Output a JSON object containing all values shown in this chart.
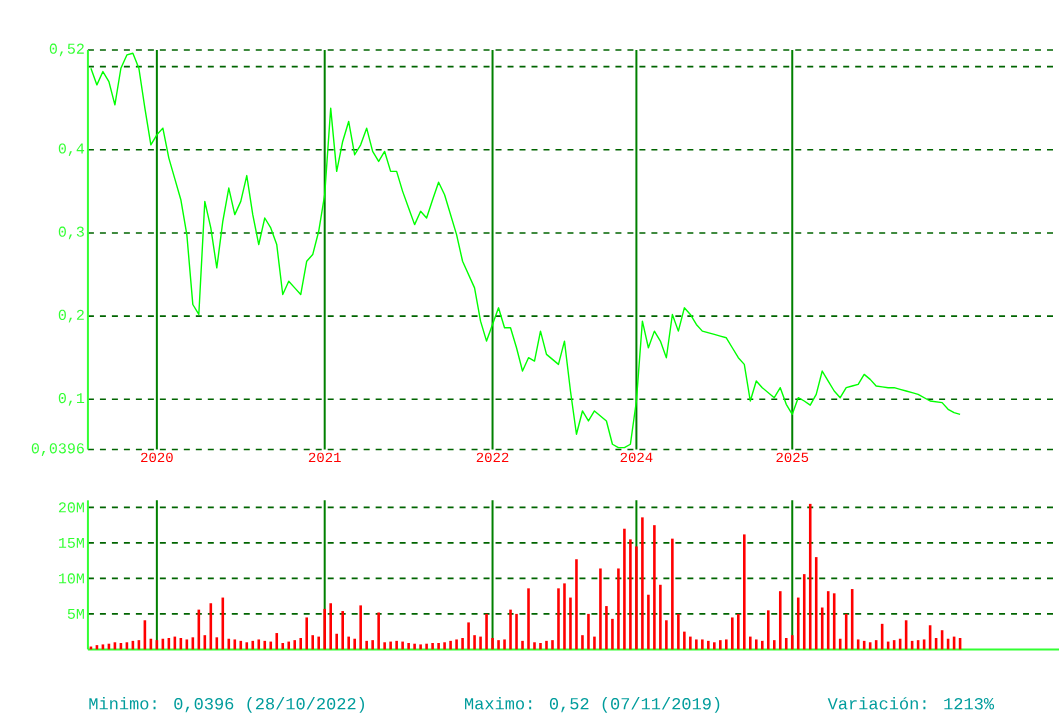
{
  "chart_data": [
    {
      "type": "line",
      "ylim": [
        0.0396,
        0.52
      ],
      "grid": true,
      "marker": "none",
      "line_style": "solid",
      "categories": [
        null,
        null,
        null,
        null,
        null,
        null,
        null,
        null,
        null,
        null,
        null,
        "2020",
        null,
        null,
        null,
        null,
        null,
        null,
        null,
        null,
        null,
        null,
        null,
        null,
        null,
        null,
        null,
        null,
        null,
        null,
        null,
        null,
        null,
        null,
        null,
        null,
        null,
        null,
        null,
        "2021",
        null,
        null,
        null,
        null,
        null,
        null,
        null,
        null,
        null,
        null,
        null,
        null,
        null,
        null,
        null,
        null,
        null,
        null,
        null,
        null,
        null,
        null,
        null,
        null,
        null,
        null,
        null,
        "2022",
        null,
        null,
        null,
        null,
        null,
        null,
        null,
        null,
        null,
        null,
        null,
        null,
        null,
        null,
        null,
        null,
        null,
        null,
        null,
        null,
        null,
        null,
        null,
        "2024",
        null,
        null,
        null,
        null,
        null,
        null,
        null,
        null,
        null,
        null,
        null,
        null,
        null,
        null,
        null,
        null,
        null,
        null,
        null,
        null,
        null,
        null,
        null,
        null,
        null,
        "2025",
        null,
        null,
        null,
        null,
        null,
        null,
        null,
        null,
        null,
        null,
        null,
        null,
        null,
        null,
        null,
        null,
        null,
        null,
        null,
        null,
        null,
        null,
        null,
        null,
        null,
        null,
        null,
        null,
        null,
        null,
        null,
        null,
        null,
        null,
        null,
        null,
        null,
        null,
        null,
        null,
        null,
        null,
        null,
        null
      ],
      "yticks": [
        {
          "value": 0.0396,
          "label": "0,0396"
        },
        {
          "value": 0.1,
          "label": "0,1"
        },
        {
          "value": 0.2,
          "label": "0,2"
        },
        {
          "value": 0.3,
          "label": "0,3"
        },
        {
          "value": 0.4,
          "label": "0,4"
        },
        {
          "value": 0.5,
          "label": null
        },
        {
          "value": 0.52,
          "label": "0,52"
        }
      ],
      "series": [
        {
          "color": "#00ff00",
          "values": [
            0.498,
            0.478,
            0.494,
            0.482,
            0.454,
            0.498,
            0.514,
            0.516,
            0.498,
            0.45,
            0.406,
            0.418,
            0.426,
            0.39,
            0.365,
            0.34,
            0.298,
            0.214,
            0.202,
            0.338,
            0.306,
            0.258,
            0.314,
            0.354,
            0.322,
            0.338,
            0.369,
            0.322,
            0.286,
            0.318,
            0.306,
            0.286,
            0.226,
            0.242,
            0.234,
            0.226,
            0.266,
            0.274,
            0.302,
            0.346,
            0.45,
            0.374,
            0.41,
            0.434,
            0.394,
            0.406,
            0.426,
            0.398,
            0.386,
            0.398,
            0.374,
            0.374,
            0.35,
            0.33,
            0.31,
            0.326,
            0.318,
            0.34,
            0.361,
            0.346,
            0.322,
            0.298,
            0.266,
            0.25,
            0.234,
            0.194,
            0.17,
            0.19,
            0.21,
            0.186,
            0.186,
            0.162,
            0.134,
            0.15,
            0.146,
            0.182,
            0.154,
            0.148,
            0.142,
            0.17,
            0.11,
            0.058,
            0.086,
            0.074,
            0.086,
            0.08,
            0.074,
            0.046,
            0.042,
            0.042,
            0.046,
            0.098,
            0.194,
            0.162,
            0.182,
            0.17,
            0.15,
            0.202,
            0.182,
            0.21,
            0.202,
            0.19,
            0.182,
            0.18,
            0.178,
            0.176,
            0.174,
            0.162,
            0.15,
            0.142,
            0.098,
            0.122,
            0.114,
            0.108,
            0.102,
            0.114,
            0.094,
            0.082,
            0.102,
            0.098,
            0.093,
            0.106,
            0.134,
            0.122,
            0.11,
            0.102,
            0.114,
            0.116,
            0.118,
            0.13,
            0.124,
            0.116,
            0.115,
            0.114,
            0.114,
            0.112,
            0.11,
            0.108,
            0.106,
            0.102,
            0.098,
            0.097,
            0.096,
            0.088,
            0.084,
            0.082,
            null,
            null,
            null,
            null,
            null,
            null,
            null,
            null,
            null,
            null,
            null,
            null,
            null,
            null,
            null,
            null
          ]
        }
      ]
    },
    {
      "type": "bar",
      "ylim": [
        0,
        21
      ],
      "grid": true,
      "tick_labels": "y",
      "categories": [
        null,
        null,
        null,
        null,
        null,
        null,
        null,
        null,
        null,
        null,
        null,
        "2020",
        null,
        null,
        null,
        null,
        null,
        null,
        null,
        null,
        null,
        null,
        null,
        null,
        null,
        null,
        null,
        null,
        null,
        null,
        null,
        null,
        null,
        null,
        null,
        null,
        null,
        null,
        null,
        "2021",
        null,
        null,
        null,
        null,
        null,
        null,
        null,
        null,
        null,
        null,
        null,
        null,
        null,
        null,
        null,
        null,
        null,
        null,
        null,
        null,
        null,
        null,
        null,
        null,
        null,
        null,
        null,
        "2022",
        null,
        null,
        null,
        null,
        null,
        null,
        null,
        null,
        null,
        null,
        null,
        null,
        null,
        null,
        null,
        null,
        null,
        null,
        null,
        null,
        null,
        null,
        null,
        "2024",
        null,
        null,
        null,
        null,
        null,
        null,
        null,
        null,
        null,
        null,
        null,
        null,
        null,
        null,
        null,
        null,
        null,
        null,
        null,
        null,
        null,
        null,
        null,
        null,
        null,
        "2025",
        null,
        null,
        null,
        null,
        null,
        null,
        null,
        null,
        null,
        null,
        null,
        null,
        null,
        null,
        null,
        null,
        null,
        null,
        null,
        null,
        null,
        null,
        null,
        null,
        null,
        null,
        null,
        null,
        null,
        null,
        null,
        null,
        null,
        null,
        null,
        null,
        null,
        null,
        null,
        null,
        null,
        null,
        null,
        null
      ],
      "yticks": [
        {
          "value": 5,
          "label": "5M"
        },
        {
          "value": 10,
          "label": "10M"
        },
        {
          "value": 15,
          "label": "15M"
        },
        {
          "value": 20,
          "label": "20M"
        }
      ],
      "series": [
        {
          "color": "#ff0000",
          "values": [
            0.4,
            0.6,
            0.7,
            0.8,
            1.0,
            0.9,
            1.0,
            1.2,
            1.3,
            4.1,
            1.5,
            1.3,
            1.5,
            1.6,
            1.8,
            1.6,
            1.4,
            1.7,
            5.6,
            2.0,
            6.5,
            1.7,
            7.3,
            1.5,
            1.4,
            1.2,
            1.0,
            1.2,
            1.4,
            1.2,
            1.1,
            2.3,
            0.9,
            1.1,
            1.3,
            1.6,
            4.5,
            2.0,
            1.8,
            5.7,
            6.5,
            2.2,
            5.4,
            1.8,
            1.5,
            6.2,
            1.2,
            1.3,
            5.2,
            1.0,
            1.1,
            1.2,
            1.1,
            0.9,
            0.8,
            0.7,
            0.8,
            0.9,
            0.9,
            1.0,
            1.2,
            1.4,
            1.6,
            3.8,
            2.0,
            1.8,
            5.0,
            1.6,
            1.3,
            1.4,
            5.6,
            5.0,
            1.2,
            8.6,
            1.0,
            0.9,
            1.2,
            1.3,
            8.6,
            9.3,
            7.3,
            12.7,
            2.0,
            5.0,
            1.8,
            11.4,
            6.1,
            4.3,
            11.4,
            17.0,
            15.5,
            14.5,
            18.6,
            7.7,
            17.5,
            9.1,
            4.1,
            15.6,
            5.0,
            2.5,
            1.8,
            1.4,
            1.4,
            1.2,
            1.0,
            1.3,
            1.4,
            4.5,
            5.0,
            16.2,
            1.8,
            1.4,
            1.2,
            5.5,
            1.3,
            8.2,
            1.6,
            2.0,
            7.3,
            10.6,
            20.5,
            13.0,
            5.9,
            8.2,
            7.9,
            1.5,
            5.0,
            8.5,
            1.4,
            1.2,
            1.0,
            1.3,
            3.6,
            1.1,
            1.3,
            1.5,
            4.1,
            1.2,
            1.3,
            1.4,
            3.4,
            1.6,
            2.7,
            1.5,
            1.8,
            1.6,
            null,
            null,
            null,
            null,
            null,
            null,
            null,
            null,
            null,
            null,
            null,
            null,
            null,
            null,
            null,
            null
          ]
        }
      ],
      "annotations": [
        "Minimo: 0,0396 (28/10/2022)",
        "Maximo: 0,52 (07/11/2019)",
        "Variación: 1213%"
      ]
    }
  ]
}
